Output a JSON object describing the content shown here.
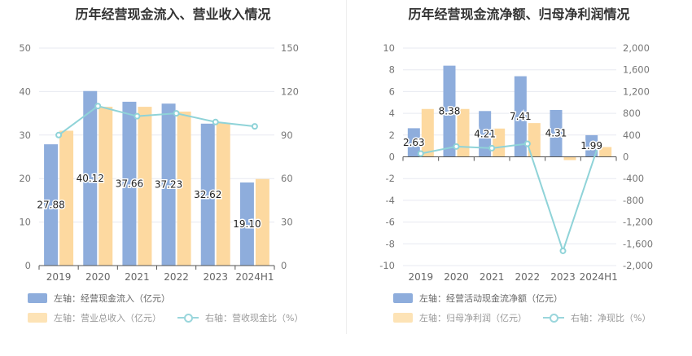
{
  "colors": {
    "bar_primary": "#8eaddc",
    "bar_secondary": "#fdd9a0",
    "line": "#8fd3d8",
    "grid": "#e7e9f0",
    "axis": "#555555"
  },
  "chart_data": [
    {
      "type": "bar",
      "title": "历年经营现金流入、营业收入情况",
      "categories": [
        "2019",
        "2020",
        "2021",
        "2022",
        "2023",
        "2024H1"
      ],
      "y_left_ticks": [
        "0",
        "10",
        "20",
        "30",
        "40",
        "50"
      ],
      "y_right_ticks": [
        "0",
        "30",
        "60",
        "90",
        "120",
        "150"
      ],
      "ylim_left": [
        0,
        50
      ],
      "ylim_right": [
        0,
        150
      ],
      "series": [
        {
          "name": "左轴：经营现金流入（亿元）",
          "axis": "left",
          "kind": "bar",
          "values": [
            27.88,
            40.12,
            37.66,
            37.23,
            32.62,
            19.1
          ],
          "labels": [
            "27.88",
            "40.12",
            "37.66",
            "37.23",
            "32.62",
            "19.10"
          ]
        },
        {
          "name": "左轴：营业总收入（亿元）",
          "axis": "left",
          "kind": "bar",
          "values": [
            31.0,
            36.5,
            36.5,
            35.4,
            32.8,
            19.9
          ]
        },
        {
          "name": "右轴：营收现金比（%）",
          "axis": "right",
          "kind": "line",
          "values": [
            90.0,
            110.0,
            103.0,
            105.0,
            99.0,
            96.0
          ]
        }
      ],
      "grid": true
    },
    {
      "type": "bar",
      "title": "历年经营现金流净额、归母净利润情况",
      "categories": [
        "2019",
        "2020",
        "2021",
        "2022",
        "2023",
        "2024H1"
      ],
      "y_left_ticks": [
        "-10",
        "-8",
        "-6",
        "-4",
        "-2",
        "0",
        "2",
        "4",
        "6",
        "8",
        "10"
      ],
      "y_right_ticks": [
        "-2,000",
        "-1,600",
        "-1,200",
        "-800",
        "-400",
        "0",
        "400",
        "800",
        "1,200",
        "1,600",
        "2,000"
      ],
      "ylim_left": [
        -10,
        10
      ],
      "ylim_right": [
        -2000,
        2000
      ],
      "series": [
        {
          "name": "左轴：经营活动现金流净额（亿元）",
          "axis": "left",
          "kind": "bar",
          "values": [
            2.63,
            8.38,
            4.21,
            7.41,
            4.31,
            1.99
          ],
          "labels": [
            "2.63",
            "8.38",
            "4.21",
            "7.41",
            "4.31",
            "1.99"
          ]
        },
        {
          "name": "左轴：归母净利润（亿元）",
          "axis": "left",
          "kind": "bar",
          "values": [
            4.4,
            4.4,
            2.6,
            3.1,
            -0.3,
            0.9
          ]
        },
        {
          "name": "右轴：净现比（%）",
          "axis": "right",
          "kind": "line",
          "values": [
            60,
            190,
            160,
            240,
            -1730,
            220
          ]
        }
      ],
      "grid": true
    }
  ]
}
